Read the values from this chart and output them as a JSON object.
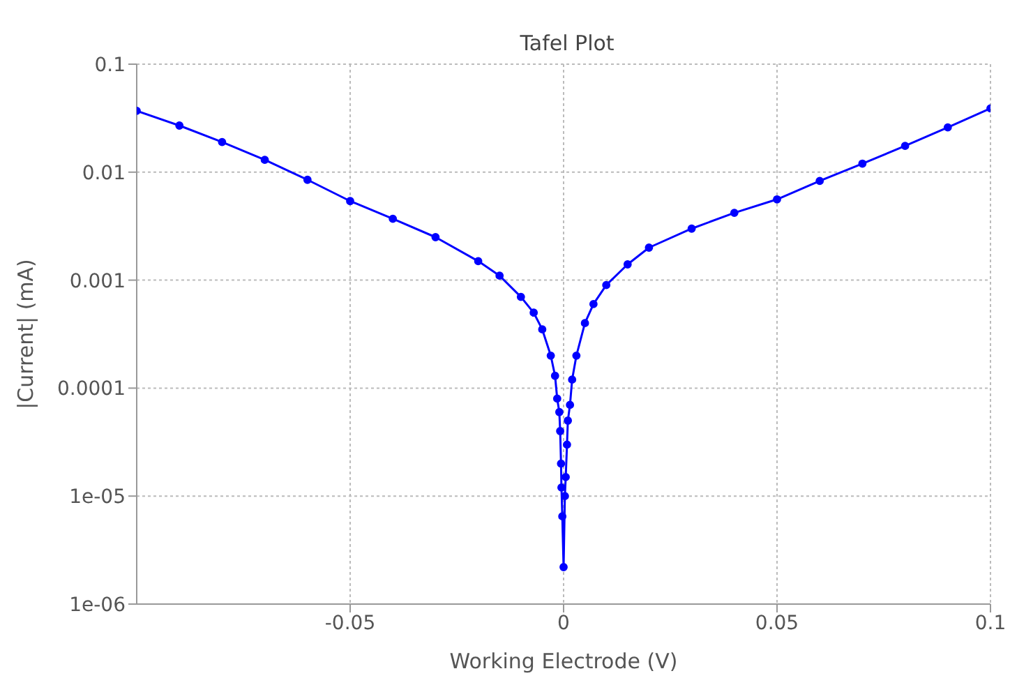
{
  "chart_data": {
    "type": "line",
    "title": "Tafel Plot",
    "xlabel": "Working Electrode (V)",
    "ylabel": "|Current| (mA)",
    "x": [
      -0.1,
      -0.09,
      -0.08,
      -0.07,
      -0.06,
      -0.05,
      -0.04,
      -0.03,
      -0.02,
      -0.015,
      -0.01,
      -0.007,
      -0.005,
      -0.003,
      -0.002,
      -0.0015,
      -0.001,
      -0.0008,
      -0.0006,
      -0.0005,
      -0.0003,
      0,
      0.0003,
      0.0005,
      0.0008,
      0.001,
      0.0015,
      0.002,
      0.003,
      0.005,
      0.007,
      0.01,
      0.015,
      0.02,
      0.03,
      0.04,
      0.05,
      0.06,
      0.07,
      0.08,
      0.09,
      0.1
    ],
    "series": [
      {
        "color": "#0000ff",
        "values": [
          0.037,
          0.027,
          0.019,
          0.013,
          0.0085,
          0.0054,
          0.0037,
          0.0025,
          0.0015,
          0.0011,
          0.0007,
          0.0005,
          0.00035,
          0.0002,
          0.00013,
          8e-05,
          6e-05,
          4e-05,
          2e-05,
          1.2e-05,
          6.5e-06,
          2.2e-06,
          1e-05,
          1.5e-05,
          3e-05,
          5e-05,
          7e-05,
          0.00012,
          0.0002,
          0.0004,
          0.0006,
          0.0009,
          0.0014,
          0.002,
          0.003,
          0.0042,
          0.0056,
          0.0083,
          0.012,
          0.0175,
          0.026,
          0.039
        ]
      }
    ],
    "xlim": [
      -0.1,
      0.1
    ],
    "xticks": [
      -0.05,
      0,
      0.05,
      0.1
    ],
    "ylim": [
      1e-06,
      0.1
    ],
    "yticks": [
      0.1,
      0.01,
      0.001,
      0.0001,
      {
        "value": 1e-05,
        "label": "1e-05"
      },
      {
        "value": 1e-06,
        "label": "1e-06"
      }
    ],
    "log": "y",
    "grid": true,
    "marker": "circle",
    "line_style": "solid",
    "legend": false
  }
}
